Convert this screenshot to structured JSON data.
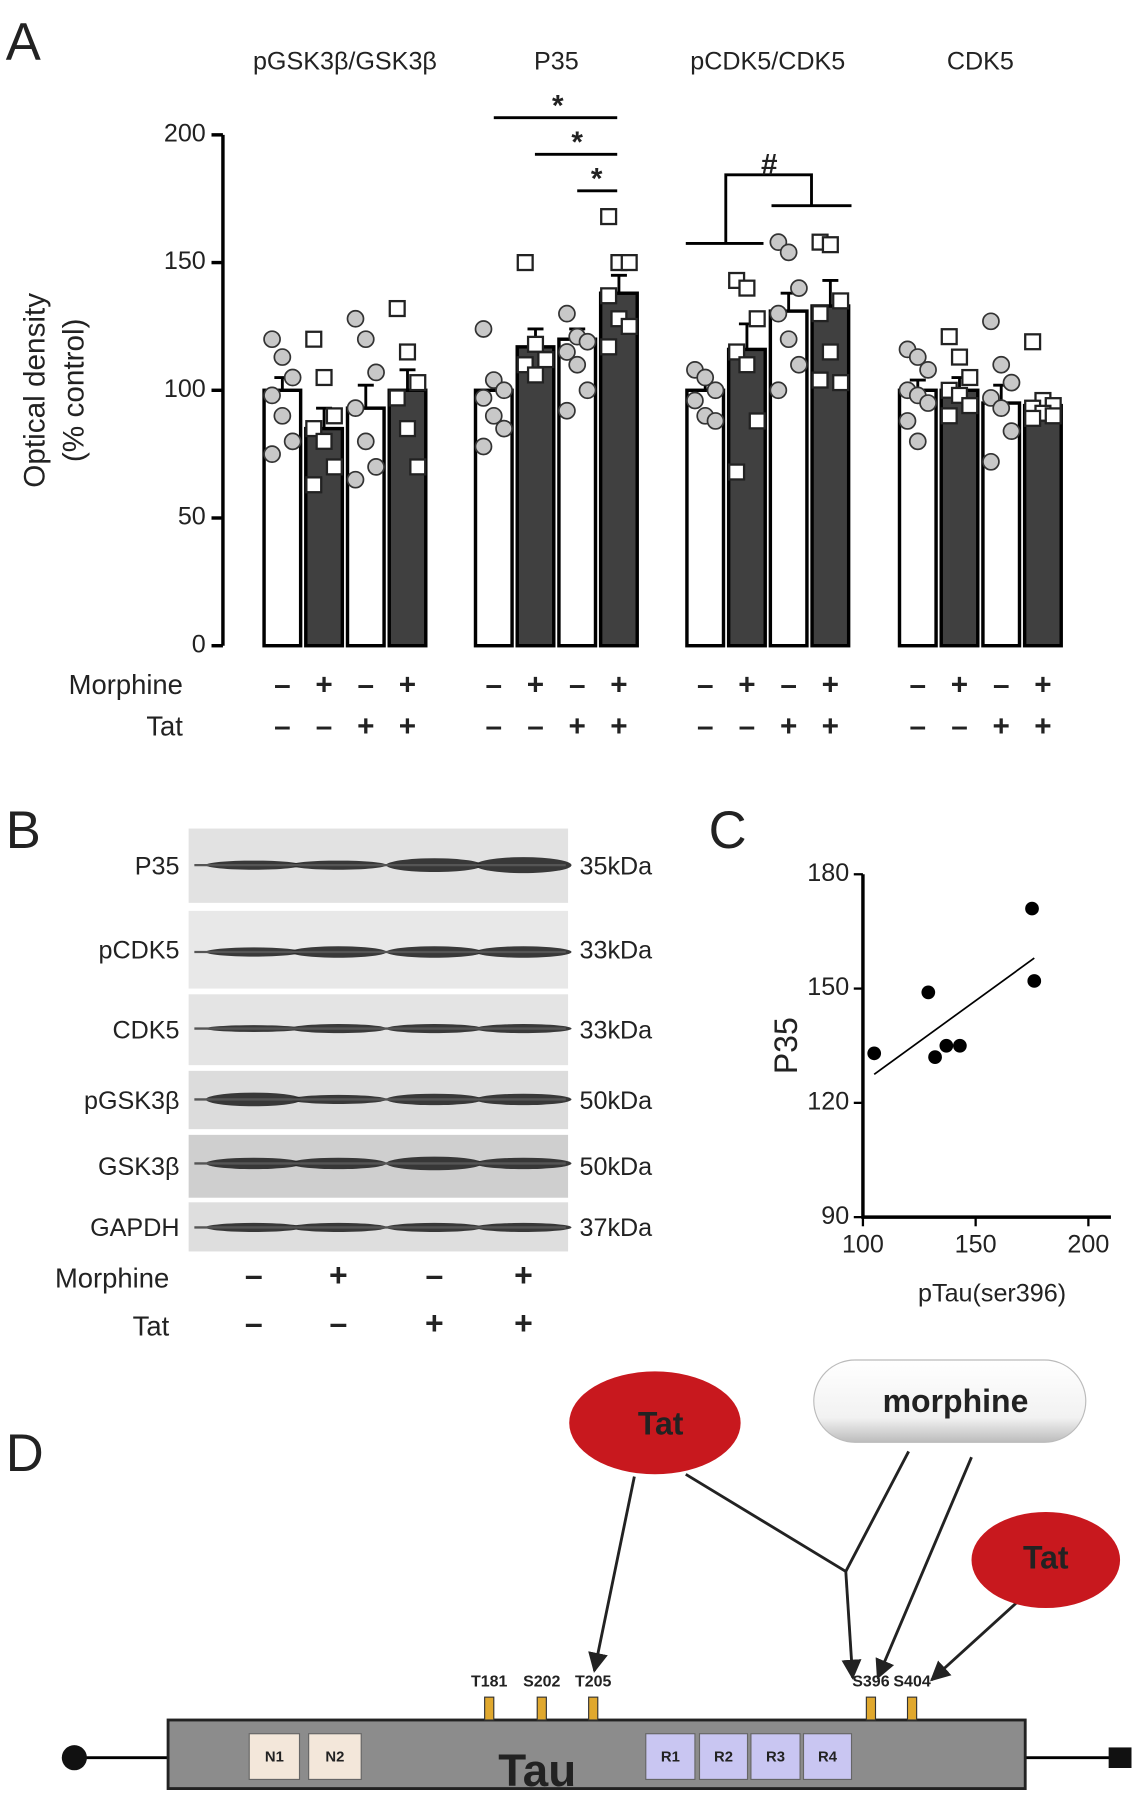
{
  "panel_labels": [
    "A",
    "B",
    "C",
    "D"
  ],
  "chart_data": [
    {
      "type": "bar",
      "y_label": [
        "Optical density",
        "(% control)"
      ],
      "categories": [
        "pGSK3β/GSK3β",
        "P35",
        "pCDK5/CDK5",
        "CDK5"
      ],
      "ylim": [
        0,
        200
      ],
      "yticks": [
        0,
        50,
        100,
        150,
        200
      ],
      "conditions": {
        "labels": [
          "Morphine",
          "Tat"
        ],
        "rows": [
          [
            "–",
            "+",
            "–",
            "+"
          ],
          [
            "–",
            "–",
            "+",
            "+"
          ]
        ]
      },
      "series": [
        {
          "color": "#ffffff",
          "marker": "circle",
          "marker_color": "#c8c8c8",
          "values": [
            100,
            100,
            100,
            100
          ],
          "errors": [
            5,
            4,
            5,
            4
          ],
          "points": [
            [
              120,
              113,
              105,
              98,
              90,
              80,
              75
            ],
            [
              124,
              104,
              100,
              97,
              90,
              85,
              78
            ],
            [
              108,
              105,
              100,
              96,
              90,
              88
            ],
            [
              116,
              113,
              108,
              100,
              98,
              95,
              88,
              80
            ]
          ]
        },
        {
          "color": "#404040",
          "marker": "square",
          "marker_color": "#ffffff",
          "values": [
            85,
            117,
            116,
            100
          ],
          "errors": [
            8,
            7,
            10,
            5
          ],
          "points": [
            [
              120,
              105,
              90,
              85,
              80,
              70,
              63
            ],
            [
              150,
              118,
              112,
              110,
              106
            ],
            [
              143,
              140,
              128,
              115,
              110,
              88,
              68
            ],
            [
              121,
              113,
              105,
              100,
              98,
              94,
              90
            ]
          ]
        },
        {
          "color": "#ffffff",
          "marker": "circle",
          "marker_color": "#c8c8c8",
          "values": [
            93,
            120,
            131,
            95
          ],
          "errors": [
            9,
            4,
            7,
            7
          ],
          "points": [
            [
              128,
              120,
              107,
              93,
              80,
              70,
              65
            ],
            [
              130,
              121,
              119,
              115,
              110,
              100,
              92
            ],
            [
              158,
              154,
              140,
              130,
              120,
              110,
              100
            ],
            [
              127,
              110,
              103,
              97,
              93,
              84,
              72
            ]
          ]
        },
        {
          "color": "#404040",
          "marker": "square",
          "marker_color": "#ffffff",
          "values": [
            100,
            138,
            133,
            94
          ],
          "errors": [
            8,
            7,
            10,
            3
          ],
          "points": [
            [
              132,
              115,
              103,
              97,
              85,
              70
            ],
            [
              168,
              150,
              150,
              137,
              128,
              125,
              117
            ],
            [
              158,
              157,
              135,
              130,
              115,
              103,
              104
            ],
            [
              119,
              96,
              94,
              93,
              91,
              90,
              89
            ]
          ]
        }
      ],
      "annotations": [
        "*",
        "*",
        "*",
        "#"
      ]
    },
    {
      "type": "scatter",
      "x_label": "pTau(ser396)",
      "y_label": "P35",
      "xlim": [
        100,
        210
      ],
      "ylim": [
        90,
        180
      ],
      "xticks": [
        100,
        150,
        200
      ],
      "yticks": [
        90,
        120,
        150,
        180
      ],
      "color": "#000000",
      "x": [
        105,
        129,
        132,
        137,
        143,
        175,
        176
      ],
      "values": [
        133,
        149,
        132,
        135,
        135,
        171,
        152
      ],
      "trendline": {
        "x": [
          105,
          176
        ],
        "y": [
          127.5,
          158
        ]
      }
    }
  ],
  "blot": {
    "rows": [
      {
        "label": "P35",
        "size": "35kDa"
      },
      {
        "label": "pCDK5",
        "size": "33kDa"
      },
      {
        "label": "CDK5",
        "size": "33kDa"
      },
      {
        "label": "pGSK3β",
        "size": "50kDa"
      },
      {
        "label": "GSK3β",
        "size": "50kDa"
      },
      {
        "label": "GAPDH",
        "size": "37kDa"
      }
    ],
    "conditions": {
      "labels": [
        "Morphine",
        "Tat"
      ],
      "rows": [
        [
          "–",
          "+",
          "–",
          "+"
        ],
        [
          "–",
          "–",
          "+",
          "+"
        ]
      ]
    }
  },
  "diagram": {
    "agents": [
      "Tat",
      "morphine",
      "Tat"
    ],
    "protein": "Tau",
    "domains": [
      "N1",
      "N2",
      "R1",
      "R2",
      "R3",
      "R4"
    ],
    "sites": [
      "T181",
      "S202",
      "T205",
      "S396",
      "S404"
    ]
  }
}
